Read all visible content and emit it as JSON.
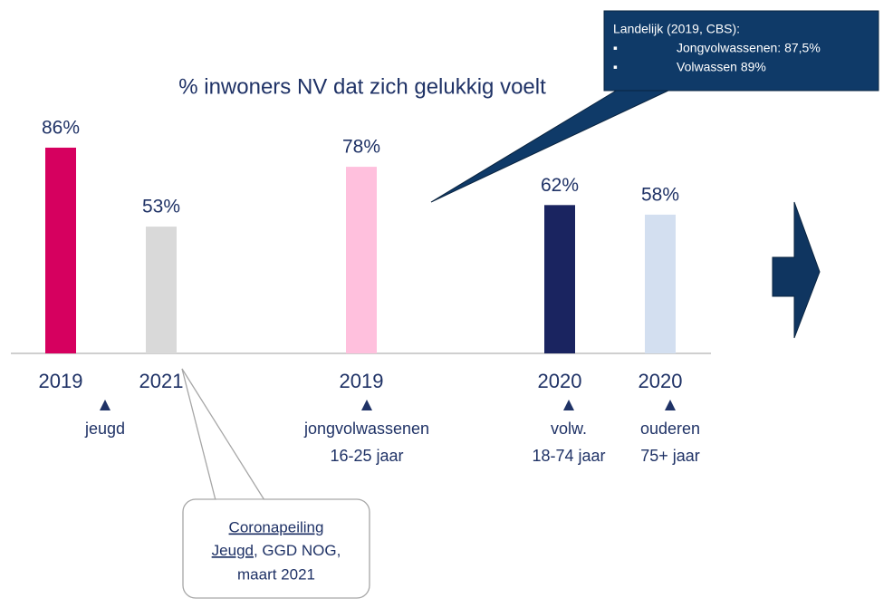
{
  "chart_data": {
    "type": "bar",
    "title": "% inwoners NV dat zich gelukkig voelt",
    "categories": [
      "2019",
      "2021",
      "2019",
      "2020",
      "2020"
    ],
    "values": [
      86,
      53,
      78,
      62,
      58
    ],
    "value_labels": [
      "86%",
      "53%",
      "78%",
      "62%",
      "58%"
    ],
    "colors": [
      "#d6005f",
      "#d9d9d9",
      "#ffc0dd",
      "#1a2460",
      "#d3dff0"
    ],
    "groups": [
      {
        "lines": [
          "jeugd"
        ]
      },
      {
        "lines": [
          "jongvolwassenen",
          "16-25 jaar"
        ]
      },
      {
        "lines": [
          "volw.",
          "18-74 jaar"
        ]
      },
      {
        "lines": [
          "ouderen",
          "75+ jaar"
        ]
      }
    ],
    "national_callout": {
      "heading": "Landelijk (2019, CBS):",
      "bullets": [
        "Jongvolwassenen: 87,5%",
        "Volwassen 89%"
      ]
    },
    "source_callout": {
      "link_1": "Coronapeiling",
      "link_2": "Jeugd",
      "rest_2": ", GGD NOG,",
      "line_3": "maart 2021"
    }
  }
}
